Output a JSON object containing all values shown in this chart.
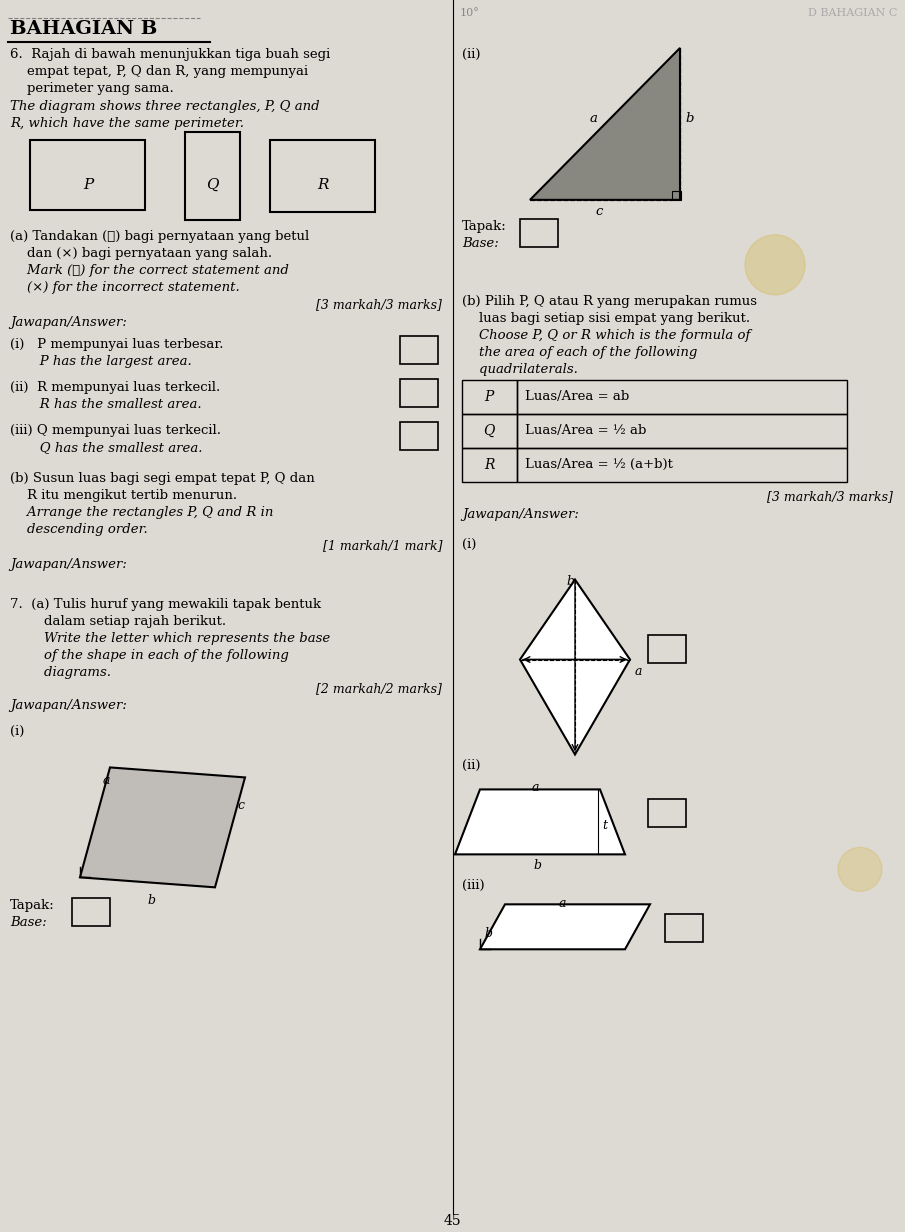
{
  "bg_color": "#ddd9d3",
  "page_width": 9.05,
  "page_height": 12.32,
  "title": "BAHAGIAN B",
  "header_right": "D BAHAGIAN C",
  "header_left_num": "10°",
  "page_number": "45"
}
